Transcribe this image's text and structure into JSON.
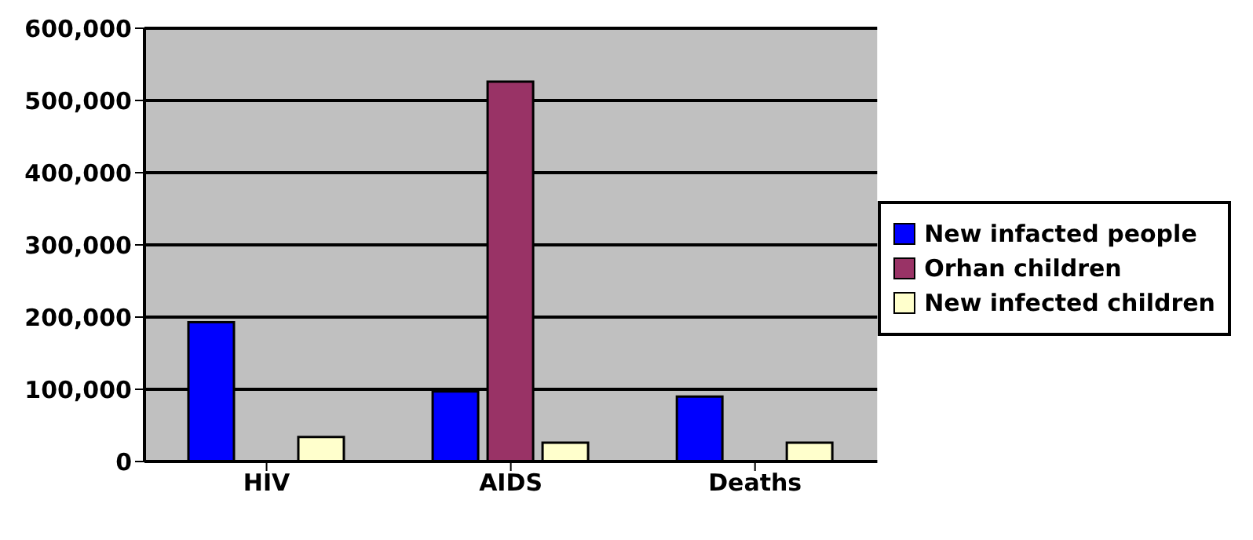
{
  "chart_data": {
    "type": "bar",
    "categories": [
      "HIV",
      "AIDS",
      "Deaths"
    ],
    "series": [
      {
        "name": "New infacted people",
        "color": "#0000ff",
        "values": [
          193000,
          97000,
          90000
        ]
      },
      {
        "name": "Orhan children",
        "color": "#993366",
        "values": [
          null,
          526000,
          null
        ]
      },
      {
        "name": "New infected children",
        "color": "#ffffcc",
        "values": [
          34000,
          26000,
          26000
        ]
      }
    ],
    "ylim": [
      0,
      600000
    ],
    "yticks": [
      0,
      {
        "value": 100000,
        "label": "100,000"
      },
      {
        "value": 200000,
        "label": "200,000"
      },
      {
        "value": 300000,
        "label": "300,000"
      },
      {
        "value": 400000,
        "label": "400,000"
      },
      {
        "value": 500000,
        "label": "500,000"
      },
      {
        "value": 600000,
        "label": "600,000"
      }
    ],
    "grid": "y",
    "legend": "right"
  }
}
